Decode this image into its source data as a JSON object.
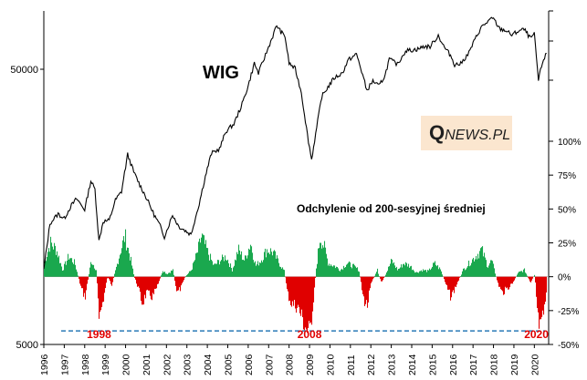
{
  "chart_data": {
    "type": "line",
    "title": "WIG",
    "watermark": {
      "first": "Q",
      "rest": "NEWS.PL"
    },
    "oscillator_label": "Odchylenie od 200-sesyjnej średniej",
    "x_labels": [
      "1996",
      "1997",
      "1998",
      "1999",
      "2000",
      "2001",
      "2002",
      "2003",
      "2004",
      "2005",
      "2006",
      "2007",
      "2008",
      "2009",
      "2010",
      "2011",
      "2012",
      "2013",
      "2014",
      "2015",
      "2016",
      "2017",
      "2018",
      "2019",
      "2020"
    ],
    "xlim": [
      1996,
      2020.7
    ],
    "left_axis": {
      "scale": "log",
      "ticks": [
        {
          "v": 50000,
          "label": "50000"
        },
        {
          "v": 5000,
          "label": "5000"
        }
      ],
      "range": [
        5000,
        69500
      ]
    },
    "right_axis": {
      "ticks": [
        "100%",
        "75%",
        "50%",
        "25%",
        "0%",
        "-25%",
        "-50%"
      ],
      "range": [
        -0.5,
        1.0
      ]
    },
    "wig_series": {
      "name": "WIG",
      "color": "#000000",
      "points": [
        [
          1996.0,
          9000
        ],
        [
          1996.3,
          13000
        ],
        [
          1996.7,
          14000
        ],
        [
          1997.0,
          13500
        ],
        [
          1997.3,
          14800
        ],
        [
          1997.6,
          15800
        ],
        [
          1998.0,
          14500
        ],
        [
          1998.3,
          18200
        ],
        [
          1998.5,
          17000
        ],
        [
          1998.7,
          11300
        ],
        [
          1998.9,
          13200
        ],
        [
          1999.2,
          13300
        ],
        [
          1999.5,
          15600
        ],
        [
          1999.8,
          16700
        ],
        [
          2000.1,
          22400
        ],
        [
          2000.4,
          19500
        ],
        [
          2000.7,
          17600
        ],
        [
          2001.0,
          16000
        ],
        [
          2001.4,
          13900
        ],
        [
          2001.7,
          12700
        ],
        [
          2001.9,
          11700
        ],
        [
          2002.3,
          13900
        ],
        [
          2002.6,
          12700
        ],
        [
          2002.9,
          12300
        ],
        [
          2003.2,
          11900
        ],
        [
          2003.6,
          15200
        ],
        [
          2003.9,
          18800
        ],
        [
          2004.2,
          22600
        ],
        [
          2004.6,
          23400
        ],
        [
          2004.9,
          26800
        ],
        [
          2005.3,
          28500
        ],
        [
          2005.7,
          33300
        ],
        [
          2006.0,
          38500
        ],
        [
          2006.3,
          46000
        ],
        [
          2006.5,
          42500
        ],
        [
          2006.9,
          50200
        ],
        [
          2007.2,
          57000
        ],
        [
          2007.4,
          62000
        ],
        [
          2007.6,
          58900
        ],
        [
          2007.8,
          56900
        ],
        [
          2008.0,
          46000
        ],
        [
          2008.3,
          44000
        ],
        [
          2008.6,
          36500
        ],
        [
          2008.9,
          26100
        ],
        [
          2009.1,
          21500
        ],
        [
          2009.3,
          26300
        ],
        [
          2009.6,
          35400
        ],
        [
          2009.9,
          38100
        ],
        [
          2010.2,
          40900
        ],
        [
          2010.6,
          42500
        ],
        [
          2010.9,
          47200
        ],
        [
          2011.3,
          49400
        ],
        [
          2011.6,
          42000
        ],
        [
          2011.8,
          37100
        ],
        [
          2012.1,
          40000
        ],
        [
          2012.4,
          38400
        ],
        [
          2012.7,
          41900
        ],
        [
          2012.9,
          47500
        ],
        [
          2013.3,
          45600
        ],
        [
          2013.7,
          50800
        ],
        [
          2014.0,
          51000
        ],
        [
          2014.3,
          51400
        ],
        [
          2014.6,
          52500
        ],
        [
          2014.9,
          52400
        ],
        [
          2015.3,
          57300
        ],
        [
          2015.6,
          52100
        ],
        [
          2015.9,
          49000
        ],
        [
          2016.1,
          45500
        ],
        [
          2016.4,
          45800
        ],
        [
          2016.8,
          50000
        ],
        [
          2017.1,
          55600
        ],
        [
          2017.4,
          61000
        ],
        [
          2017.8,
          64600
        ],
        [
          2018.0,
          65400
        ],
        [
          2018.3,
          60300
        ],
        [
          2018.6,
          59600
        ],
        [
          2018.9,
          57400
        ],
        [
          2019.2,
          59200
        ],
        [
          2019.5,
          60100
        ],
        [
          2019.8,
          56000
        ],
        [
          2020.0,
          57800
        ],
        [
          2020.2,
          40200
        ],
        [
          2020.4,
          46500
        ],
        [
          2020.6,
          49700
        ]
      ]
    },
    "deviation_series": {
      "name": "",
      "positive_color": "#1aa84e",
      "negative_color": "#e00000",
      "points": [
        [
          1996.0,
          0.1
        ],
        [
          1996.3,
          0.25
        ],
        [
          1996.6,
          0.2
        ],
        [
          1996.9,
          0.05
        ],
        [
          1997.2,
          0.15
        ],
        [
          1997.5,
          0.1
        ],
        [
          1997.8,
          -0.08
        ],
        [
          1998.0,
          -0.15
        ],
        [
          1998.3,
          0.12
        ],
        [
          1998.55,
          0.05
        ],
        [
          1998.7,
          -0.3
        ],
        [
          1998.85,
          -0.2
        ],
        [
          1999.1,
          0.0
        ],
        [
          1999.3,
          -0.06
        ],
        [
          1999.55,
          0.08
        ],
        [
          1999.75,
          0.2
        ],
        [
          1999.95,
          0.3
        ],
        [
          2000.2,
          0.15
        ],
        [
          2000.4,
          0.0
        ],
        [
          2000.6,
          -0.08
        ],
        [
          2000.8,
          -0.2
        ],
        [
          2001.0,
          -0.12
        ],
        [
          2001.3,
          -0.15
        ],
        [
          2001.6,
          -0.05
        ],
        [
          2001.8,
          0.05
        ],
        [
          2002.0,
          0.02
        ],
        [
          2002.3,
          0.05
        ],
        [
          2002.5,
          -0.12
        ],
        [
          2002.7,
          -0.08
        ],
        [
          2002.9,
          0.0
        ],
        [
          2003.2,
          0.05
        ],
        [
          2003.5,
          0.18
        ],
        [
          2003.7,
          0.3
        ],
        [
          2004.0,
          0.18
        ],
        [
          2004.3,
          0.08
        ],
        [
          2004.6,
          0.12
        ],
        [
          2004.9,
          0.15
        ],
        [
          2005.2,
          0.05
        ],
        [
          2005.5,
          0.2
        ],
        [
          2005.8,
          0.12
        ],
        [
          2006.1,
          0.25
        ],
        [
          2006.35,
          0.08
        ],
        [
          2006.6,
          0.12
        ],
        [
          2006.9,
          0.2
        ],
        [
          2007.2,
          0.18
        ],
        [
          2007.5,
          0.1
        ],
        [
          2007.75,
          0.04
        ],
        [
          2007.9,
          -0.12
        ],
        [
          2008.1,
          -0.2
        ],
        [
          2008.4,
          -0.22
        ],
        [
          2008.6,
          -0.3
        ],
        [
          2008.8,
          -0.38
        ],
        [
          2009.0,
          -0.42
        ],
        [
          2009.15,
          -0.2
        ],
        [
          2009.3,
          0.05
        ],
        [
          2009.5,
          0.3
        ],
        [
          2009.7,
          0.22
        ],
        [
          2009.9,
          0.1
        ],
        [
          2010.2,
          0.08
        ],
        [
          2010.5,
          0.05
        ],
        [
          2010.8,
          0.1
        ],
        [
          2011.1,
          0.08
        ],
        [
          2011.4,
          0.05
        ],
        [
          2011.6,
          -0.15
        ],
        [
          2011.8,
          -0.22
        ],
        [
          2012.0,
          -0.05
        ],
        [
          2012.3,
          0.05
        ],
        [
          2012.5,
          -0.05
        ],
        [
          2012.8,
          0.05
        ],
        [
          2013.0,
          0.12
        ],
        [
          2013.3,
          0.05
        ],
        [
          2013.6,
          0.1
        ],
        [
          2013.9,
          0.08
        ],
        [
          2014.2,
          0.03
        ],
        [
          2014.5,
          0.05
        ],
        [
          2014.8,
          0.04
        ],
        [
          2015.1,
          0.1
        ],
        [
          2015.4,
          0.05
        ],
        [
          2015.7,
          -0.08
        ],
        [
          2015.9,
          -0.15
        ],
        [
          2016.2,
          -0.05
        ],
        [
          2016.5,
          0.05
        ],
        [
          2016.8,
          0.1
        ],
        [
          2017.1,
          0.15
        ],
        [
          2017.4,
          0.2
        ],
        [
          2017.7,
          0.08
        ],
        [
          2017.9,
          0.12
        ],
        [
          2018.2,
          -0.05
        ],
        [
          2018.4,
          -0.12
        ],
        [
          2018.7,
          -0.08
        ],
        [
          2018.9,
          -0.05
        ],
        [
          2019.2,
          0.03
        ],
        [
          2019.5,
          0.05
        ],
        [
          2019.8,
          -0.05
        ],
        [
          2020.0,
          0.02
        ],
        [
          2020.15,
          -0.32
        ],
        [
          2020.3,
          -0.4
        ],
        [
          2020.5,
          -0.2
        ],
        [
          2020.6,
          -0.12
        ]
      ]
    },
    "threshold": {
      "value": -0.4,
      "color": "#2a7ab8",
      "style": "dashed"
    },
    "annotations": [
      {
        "label": "1998",
        "x": 1998.7,
        "color": "#e00000"
      },
      {
        "label": "2008",
        "x": 2009.0,
        "color": "#e00000"
      },
      {
        "label": "2020",
        "x": 2020.1,
        "color": "#e00000"
      }
    ]
  }
}
